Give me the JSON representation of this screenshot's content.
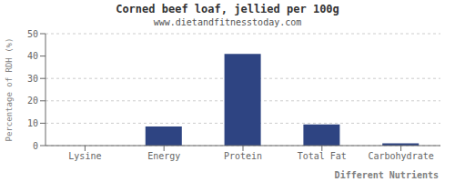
{
  "chart_data": {
    "type": "bar",
    "title": "Corned beef loaf, jellied per 100g",
    "subtitle": "www.dietandfitnesstoday.com",
    "xlabel": "Different Nutrients",
    "ylabel": "Percentage of RDH (%)",
    "categories": [
      "Lysine",
      "Energy",
      "Protein",
      "Total Fat",
      "Carbohydrate"
    ],
    "values": [
      0.0,
      8.5,
      41.0,
      9.5,
      1.0
    ],
    "color": "#2e4482",
    "ylim": [
      0,
      50
    ],
    "yticks": [
      0,
      10,
      20,
      30,
      40,
      50
    ],
    "grid": true
  }
}
